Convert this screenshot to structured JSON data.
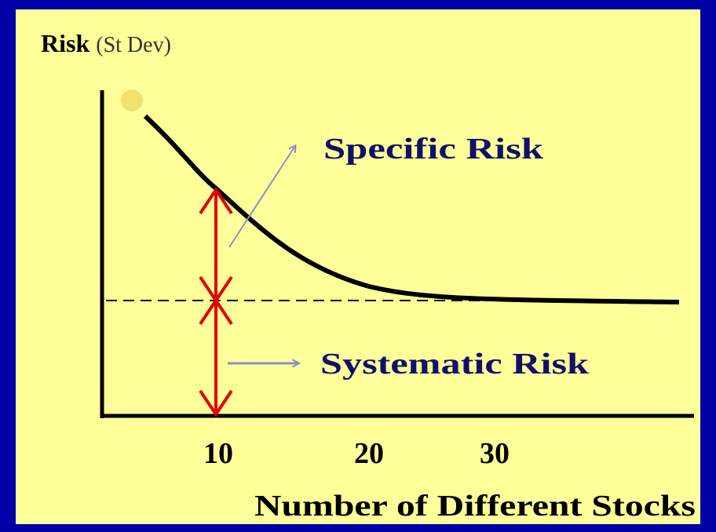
{
  "y_axis": {
    "label": "Risk",
    "unit": "(St Dev)"
  },
  "x_axis": {
    "label": "Number of Different Stocks",
    "ticks": [
      10,
      20,
      30
    ]
  },
  "annotations": {
    "specific": "Specific Risk",
    "systematic": "Systematic Risk"
  }
}
